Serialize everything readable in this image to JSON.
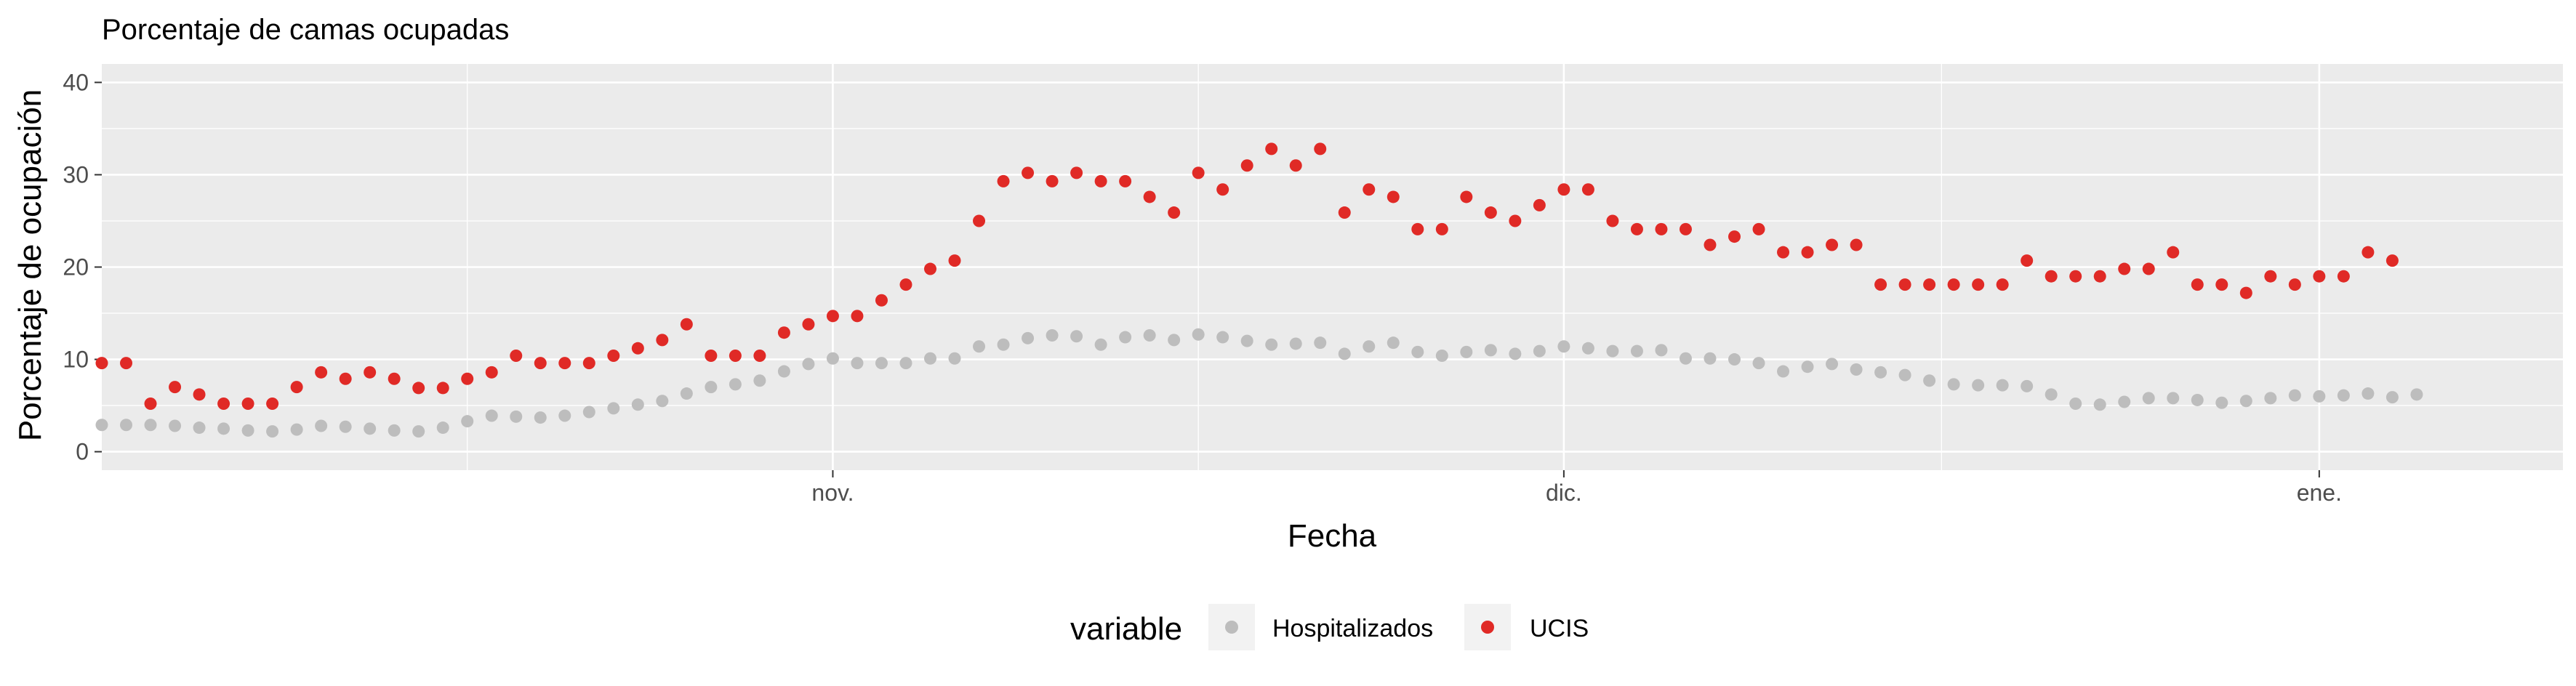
{
  "chart_data": {
    "type": "scatter",
    "title": "Porcentaje de camas ocupadas",
    "xlabel": "Fecha",
    "ylabel": "Porcentaje de ocupación",
    "x_start": "2020-10-02",
    "x_range": [
      "2020-10-02",
      "2021-01-11"
    ],
    "ylim": [
      -2,
      42
    ],
    "y_ticks": [
      0,
      10,
      20,
      30,
      40
    ],
    "x_ticks": [
      {
        "date": "2020-11-01",
        "label": "nov."
      },
      {
        "date": "2020-12-01",
        "label": "dic."
      },
      {
        "date": "2021-01-01",
        "label": "ene."
      }
    ],
    "grid": true,
    "legend": {
      "title": "variable",
      "position": "bottom"
    },
    "series": [
      {
        "name": "Hospitalizados",
        "color": "#bdbdbd",
        "values": [
          2.9,
          2.9,
          2.9,
          2.8,
          2.6,
          2.5,
          2.3,
          2.2,
          2.4,
          2.8,
          2.7,
          2.5,
          2.3,
          2.2,
          2.6,
          3.3,
          3.9,
          3.8,
          3.7,
          3.9,
          4.3,
          4.7,
          5.1,
          5.5,
          6.3,
          7.0,
          7.3,
          7.7,
          8.7,
          9.5,
          10.1,
          9.6,
          9.6,
          9.6,
          10.1,
          10.1,
          11.4,
          11.6,
          12.3,
          12.6,
          12.5,
          11.6,
          12.4,
          12.6,
          12.1,
          12.7,
          12.4,
          12.0,
          11.6,
          11.7,
          11.8,
          10.6,
          11.4,
          11.8,
          10.8,
          10.4,
          10.8,
          11.0,
          10.6,
          10.9,
          11.4,
          11.2,
          10.9,
          10.9,
          11.0,
          10.1,
          10.1,
          10.0,
          9.6,
          8.7,
          9.2,
          9.5,
          8.9,
          8.6,
          8.3,
          7.7,
          7.3,
          7.2,
          7.2,
          7.1,
          6.2,
          5.2,
          5.1,
          5.4,
          5.8,
          5.8,
          5.6,
          5.3,
          5.5,
          5.8,
          6.1,
          6.0,
          6.1,
          6.3,
          5.9,
          6.2
        ]
      },
      {
        "name": "UCIS",
        "color": "#e02a26",
        "values": [
          9.6,
          9.6,
          5.2,
          7.0,
          6.2,
          5.2,
          5.2,
          5.2,
          7.0,
          8.6,
          7.9,
          8.6,
          7.9,
          6.9,
          6.9,
          7.9,
          8.6,
          10.4,
          9.6,
          9.6,
          9.6,
          10.4,
          11.2,
          12.1,
          13.8,
          10.4,
          10.4,
          10.4,
          12.9,
          13.8,
          14.7,
          14.7,
          16.4,
          18.1,
          19.8,
          20.7,
          25.0,
          29.3,
          30.2,
          29.3,
          30.2,
          29.3,
          29.3,
          27.6,
          25.9,
          30.2,
          28.4,
          31.0,
          32.8,
          31.0,
          32.8,
          25.9,
          28.4,
          27.6,
          24.1,
          24.1,
          27.6,
          25.9,
          25.0,
          26.7,
          28.4,
          28.4,
          25.0,
          24.1,
          24.1,
          24.1,
          22.4,
          23.3,
          24.1,
          21.6,
          21.6,
          22.4,
          22.4,
          18.1,
          18.1,
          18.1,
          18.1,
          18.1,
          18.1,
          20.7,
          19.0,
          19.0,
          19.0,
          19.8,
          19.8,
          21.6,
          18.1,
          18.1,
          17.2,
          19.0,
          18.1,
          19.0,
          19.0,
          21.6,
          20.7
        ]
      }
    ]
  }
}
